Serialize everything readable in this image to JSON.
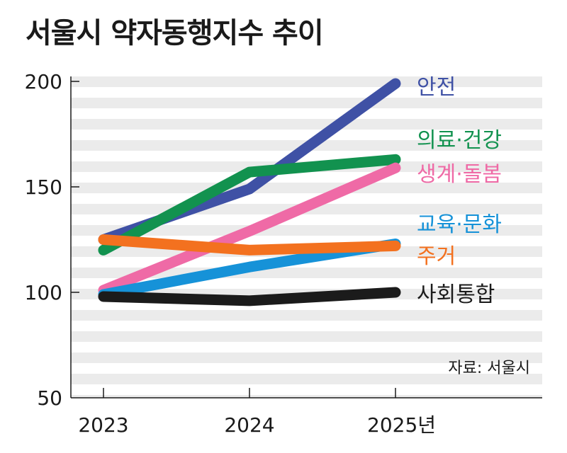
{
  "title": "서울시 약자동행지수 추이",
  "source": "자료: 서울시",
  "chart_data": {
    "type": "line",
    "title": "서울시 약자동행지수 추이",
    "x": [
      "2023",
      "2024",
      "2025년"
    ],
    "ylim": [
      50,
      200
    ],
    "yticks": [
      "200",
      "150",
      "100",
      "50"
    ],
    "grid": "horizontal stripes",
    "legend": "labels at line ends (right)",
    "series": [
      {
        "name": "안전",
        "values": [
          125,
          149,
          199
        ],
        "color": "#3f51a5"
      },
      {
        "name": "의료·건강",
        "values": [
          120,
          157,
          163
        ],
        "color": "#12924f"
      },
      {
        "name": "생계·돌봄",
        "values": [
          101,
          129,
          159
        ],
        "color": "#ef6aa6"
      },
      {
        "name": "교육·문화",
        "values": [
          99,
          112,
          123
        ],
        "color": "#1692d8"
      },
      {
        "name": "주거",
        "values": [
          125,
          120,
          122
        ],
        "color": "#f3711f"
      },
      {
        "name": "사회통합",
        "values": [
          98,
          96,
          100
        ],
        "color": "#1b1b1b"
      }
    ]
  }
}
